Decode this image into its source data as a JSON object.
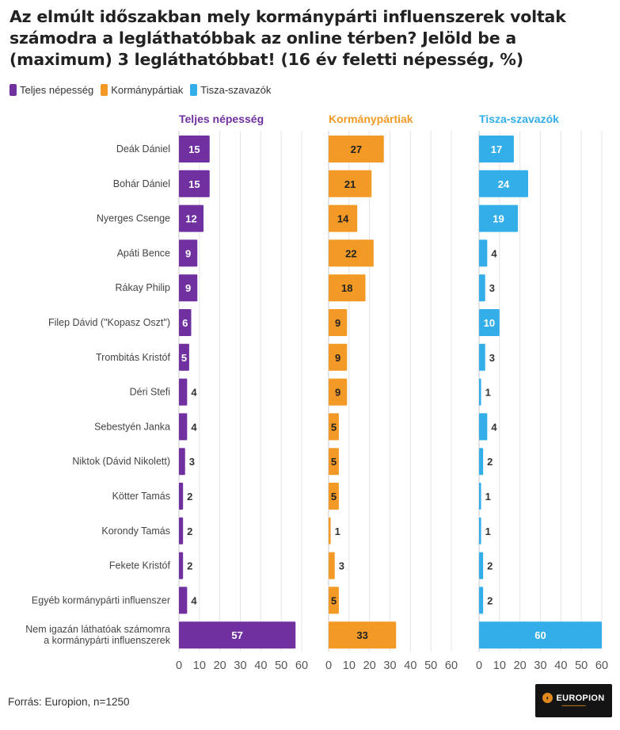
{
  "title": "Az elmúlt időszakban mely kormánypárti influenszerek voltak számodra a legláthatóbbak az online térben? Jelöld be a (maximum) 3 legláthatóbbat! (16 év feletti népesség, %)",
  "legend": [
    {
      "label": "Teljes népesség",
      "color": "#7030a0"
    },
    {
      "label": "Kormánypártiak",
      "color": "#f39a26"
    },
    {
      "label": "Tisza-szavazók",
      "color": "#33aee8"
    }
  ],
  "source": "Forrás: Europion, n=1250",
  "logo": {
    "text": "EUROPION",
    "icon": "europion-logo-icon"
  },
  "chart_data": {
    "type": "bar",
    "orientation": "horizontal",
    "categories": [
      "Deák Dániel",
      "Bohár Dániel",
      "Nyerges Csenge",
      "Apáti Bence",
      "Rákay Philip",
      "Filep Dávid (\"Kopasz Oszt\")",
      "Trombitás Kristóf",
      "Déri Stefi",
      "Sebestyén Janka",
      "Niktok (Dávid Nikolett)",
      "Kötter Tamás",
      "Korondy Tamás",
      "Fekete Kristóf",
      "Egyéb kormánypárti influenszer",
      "Nem igazán láthatóak számomra a kormánypárti influenszerek"
    ],
    "series": [
      {
        "name": "Teljes népesség",
        "color": "#7030a0",
        "values": [
          15,
          15,
          12,
          9,
          9,
          6,
          5,
          4,
          4,
          3,
          2,
          2,
          2,
          4,
          57
        ]
      },
      {
        "name": "Kormánypártiak",
        "color": "#f39a26",
        "values": [
          27,
          21,
          14,
          22,
          18,
          9,
          9,
          9,
          5,
          5,
          5,
          1,
          3,
          5,
          33
        ]
      },
      {
        "name": "Tisza-szavazók",
        "color": "#33aee8",
        "values": [
          17,
          24,
          19,
          4,
          3,
          10,
          3,
          1,
          4,
          2,
          1,
          1,
          2,
          2,
          60
        ]
      }
    ],
    "xlim": [
      0,
      60
    ],
    "xticks": [
      0,
      10,
      20,
      30,
      40,
      50,
      60
    ],
    "grid": true,
    "legend_position": "top-left"
  }
}
